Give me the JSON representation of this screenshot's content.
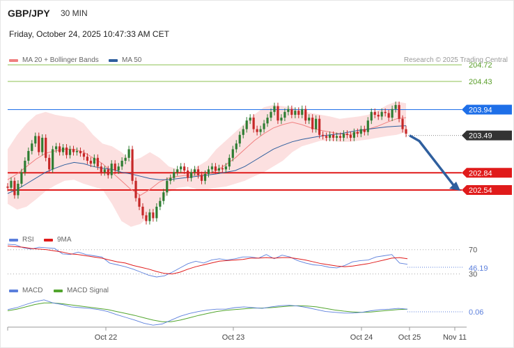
{
  "header": {
    "symbol": "GBP/JPY",
    "timeframe": "30 MIN",
    "datetime": "Friday, October 24, 2025 10:47:33 AM CET"
  },
  "legend": {
    "ma20_label": "MA 20 + Bollinger Bands",
    "ma50_label": "MA 50",
    "copyright": "Research © 2025 Trading Central",
    "rsi_label": "RSI",
    "rsi_ma_label": "9MA",
    "macd_label": "MACD",
    "macd_signal_label": "MACD Signal"
  },
  "colors": {
    "candle_up": "#2e7d32",
    "candle_down": "#c62828",
    "bollinger_fill": "#fbd5d5",
    "ma20": "#f08080",
    "ma50": "#2f5f9e",
    "resistance": "#1e6fe8",
    "support": "#e01b1b",
    "current_price": "#333333",
    "green_level": "#8cc152",
    "arrow": "#2f5f9e",
    "rsi": "#5b7fdc",
    "rsi_ma": "#e01b1b",
    "macd": "#5b7fdc",
    "macd_signal": "#52a52e"
  },
  "chart_data": [
    {
      "type": "candlestick",
      "title": "GBP/JPY",
      "timeframe": "30 MIN",
      "ylim": [
        201.85,
        205.0
      ],
      "x_ticks": [
        "Oct 22",
        "Oct 23",
        "Oct 24",
        "Oct 25",
        "Nov 11"
      ],
      "levels": [
        {
          "value": 204.72,
          "label": "204.72",
          "kind": "target"
        },
        {
          "value": 204.43,
          "label": "204.43",
          "kind": "target"
        },
        {
          "value": 203.94,
          "label": "203.94",
          "kind": "resistance"
        },
        {
          "value": 203.49,
          "label": "203.49",
          "kind": "current"
        },
        {
          "value": 202.84,
          "label": "202.84",
          "kind": "support"
        },
        {
          "value": 202.54,
          "label": "202.54",
          "kind": "support"
        }
      ],
      "forecast": {
        "direction": "down",
        "from": 203.49,
        "to": 202.54
      },
      "close": [
        202.58,
        202.7,
        202.45,
        202.65,
        202.85,
        203.05,
        203.22,
        203.35,
        203.48,
        203.2,
        203.45,
        203.1,
        202.9,
        203.25,
        203.3,
        203.2,
        203.28,
        203.15,
        203.25,
        203.2,
        203.22,
        203.18,
        203.12,
        203.05,
        203.0,
        203.1,
        202.95,
        202.85,
        202.9,
        202.8,
        203.0,
        202.88,
        202.95,
        203.05,
        203.1,
        203.25,
        202.7,
        202.4,
        202.25,
        202.1,
        202.0,
        202.15,
        202.05,
        202.25,
        202.35,
        202.5,
        202.7,
        202.75,
        202.85,
        202.9,
        202.95,
        202.88,
        202.75,
        202.85,
        202.9,
        202.8,
        202.7,
        202.82,
        202.9,
        202.95,
        202.88,
        202.92,
        202.9,
        202.95,
        203.1,
        203.25,
        203.35,
        203.5,
        203.6,
        203.75,
        203.8,
        203.6,
        203.55,
        203.6,
        203.7,
        203.8,
        203.9,
        204.0,
        203.75,
        203.8,
        203.9,
        203.95,
        203.85,
        203.92,
        203.85,
        203.95,
        203.75,
        203.8,
        203.6,
        203.78,
        203.5,
        203.48,
        203.45,
        203.5,
        203.45,
        203.48,
        203.45,
        203.52,
        203.5,
        203.45,
        203.55,
        203.52,
        203.6,
        203.55,
        203.75,
        203.9,
        203.85,
        203.82,
        203.9,
        203.88,
        203.8,
        203.95,
        204.02,
        203.78,
        203.6,
        203.52
      ],
      "open": [
        202.6,
        202.58,
        202.7,
        202.45,
        202.65,
        202.85,
        203.05,
        203.22,
        203.35,
        203.48,
        203.2,
        203.45,
        203.1,
        202.9,
        203.25,
        203.3,
        203.2,
        203.28,
        203.15,
        203.25,
        203.2,
        203.22,
        203.18,
        203.12,
        203.05,
        203.0,
        203.1,
        202.95,
        202.85,
        202.9,
        202.8,
        203.0,
        202.88,
        202.95,
        203.05,
        203.1,
        203.25,
        202.7,
        202.4,
        202.25,
        202.1,
        202.0,
        202.15,
        202.05,
        202.25,
        202.35,
        202.5,
        202.7,
        202.75,
        202.85,
        202.9,
        202.95,
        202.88,
        202.75,
        202.85,
        202.9,
        202.8,
        202.7,
        202.82,
        202.9,
        202.95,
        202.88,
        202.92,
        202.9,
        202.95,
        203.1,
        203.25,
        203.35,
        203.5,
        203.6,
        203.75,
        203.8,
        203.6,
        203.55,
        203.6,
        203.7,
        203.8,
        203.9,
        204.0,
        203.75,
        203.8,
        203.9,
        203.95,
        203.85,
        203.92,
        203.85,
        203.95,
        203.75,
        203.8,
        203.6,
        203.78,
        203.5,
        203.48,
        203.45,
        203.5,
        203.45,
        203.48,
        203.45,
        203.52,
        203.5,
        203.45,
        203.55,
        203.52,
        203.6,
        203.55,
        203.75,
        203.9,
        203.85,
        203.82,
        203.9,
        203.88,
        203.8,
        203.95,
        204.02,
        203.78,
        203.6
      ],
      "upper_band": [
        203.25,
        203.5,
        203.7,
        203.85,
        203.9,
        203.85,
        203.82,
        203.8,
        203.7,
        203.5,
        203.35,
        203.3,
        203.2,
        203.05,
        203.1,
        203.2,
        203.1,
        202.95,
        202.9,
        202.85,
        202.95,
        203.05,
        203.25,
        203.4,
        203.55,
        203.7,
        203.85,
        203.98,
        204.02,
        204.0,
        203.98,
        203.92,
        203.88,
        203.85,
        203.82,
        203.78,
        203.8,
        203.82,
        203.85,
        203.92,
        204.02,
        204.08,
        204.05
      ],
      "lower_band": [
        202.3,
        202.2,
        202.25,
        202.38,
        202.52,
        202.62,
        202.7,
        202.72,
        202.65,
        202.6,
        202.55,
        202.3,
        202.0,
        201.9,
        201.95,
        202.1,
        202.3,
        202.5,
        202.58,
        202.6,
        202.55,
        202.55,
        202.58,
        202.6,
        202.65,
        202.7,
        202.78,
        202.85,
        202.95,
        203.05,
        203.2,
        203.3,
        203.35,
        203.4,
        203.4,
        203.38,
        203.38,
        203.4,
        203.42,
        203.45,
        203.48,
        203.5,
        203.55
      ],
      "ma20": [
        202.72,
        202.82,
        202.95,
        203.08,
        203.18,
        203.22,
        203.25,
        203.25,
        203.2,
        203.1,
        203.0,
        202.85,
        202.7,
        202.55,
        202.45,
        202.55,
        202.68,
        202.75,
        202.78,
        202.8,
        202.8,
        202.82,
        202.88,
        202.98,
        203.1,
        203.25,
        203.4,
        203.52,
        203.62,
        203.68,
        203.72,
        203.68,
        203.62,
        203.58,
        203.55,
        203.52,
        203.5,
        203.55,
        203.6,
        203.65,
        203.72,
        203.78,
        203.8
      ],
      "ma50": [
        202.48,
        202.55,
        202.65,
        202.75,
        202.85,
        202.92,
        202.98,
        203.02,
        203.0,
        202.95,
        202.92,
        202.9,
        202.85,
        202.82,
        202.78,
        202.74,
        202.72,
        202.72,
        202.74,
        202.76,
        202.78,
        202.8,
        202.82,
        202.85,
        202.88,
        202.95,
        203.05,
        203.15,
        203.25,
        203.32,
        203.38,
        203.42,
        203.45,
        203.48,
        203.5,
        203.52,
        203.55,
        203.58,
        203.6,
        203.62,
        203.64,
        203.65,
        203.66
      ]
    },
    {
      "type": "line",
      "name": "RSI",
      "levels": [
        70,
        30
      ],
      "ylim": [
        25,
        80
      ],
      "last_value": "46.19",
      "series": [
        {
          "name": "RSI",
          "values": [
            79,
            78,
            73,
            71,
            74,
            73,
            72,
            63,
            62,
            66,
            62,
            60,
            58,
            48,
            45,
            42,
            38,
            33,
            28,
            25,
            27,
            33,
            40,
            47,
            51,
            48,
            53,
            55,
            53,
            55,
            58,
            58,
            56,
            62,
            55,
            61,
            58,
            52,
            48,
            45,
            44,
            41,
            40,
            44,
            50,
            52,
            53,
            58,
            60,
            62,
            48,
            46
          ]
        },
        {
          "name": "9MA",
          "values": [
            76,
            75,
            74,
            72,
            71,
            70,
            68,
            66,
            63,
            62,
            60,
            58,
            56,
            53,
            50,
            48,
            44,
            41,
            38,
            34,
            31,
            30,
            33,
            38,
            42,
            45,
            48,
            51,
            52,
            53,
            54,
            56,
            56,
            57,
            56,
            57,
            57,
            55,
            53,
            50,
            47,
            45,
            43,
            42,
            43,
            45,
            47,
            50,
            53,
            56,
            57,
            55
          ]
        }
      ]
    },
    {
      "type": "line",
      "name": "MACD",
      "ylim": [
        -0.4,
        0.35
      ],
      "last_value": "0.06",
      "series": [
        {
          "name": "MACD",
          "values": [
            0.05,
            0.1,
            0.18,
            0.25,
            0.3,
            0.22,
            0.18,
            0.12,
            0.1,
            0.08,
            0.05,
            0.0,
            -0.08,
            -0.15,
            -0.22,
            -0.3,
            -0.35,
            -0.32,
            -0.22,
            -0.12,
            -0.05,
            0.0,
            0.04,
            0.06,
            0.06,
            0.1,
            0.12,
            0.1,
            0.08,
            0.12,
            0.15,
            0.16,
            0.14,
            0.1,
            0.05,
            0.0,
            -0.02,
            -0.04,
            -0.04,
            -0.02,
            0.02,
            0.05,
            0.06,
            0.08,
            0.06
          ]
        },
        {
          "name": "MACD Signal",
          "values": [
            0.02,
            0.06,
            0.12,
            0.18,
            0.22,
            0.22,
            0.2,
            0.17,
            0.14,
            0.11,
            0.08,
            0.05,
            0.0,
            -0.05,
            -0.1,
            -0.16,
            -0.22,
            -0.26,
            -0.26,
            -0.22,
            -0.16,
            -0.1,
            -0.05,
            0.0,
            0.03,
            0.05,
            0.07,
            0.09,
            0.09,
            0.1,
            0.12,
            0.14,
            0.15,
            0.14,
            0.12,
            0.08,
            0.04,
            0.01,
            -0.01,
            -0.02,
            -0.01,
            0.01,
            0.03,
            0.05,
            0.06
          ]
        }
      ]
    }
  ]
}
